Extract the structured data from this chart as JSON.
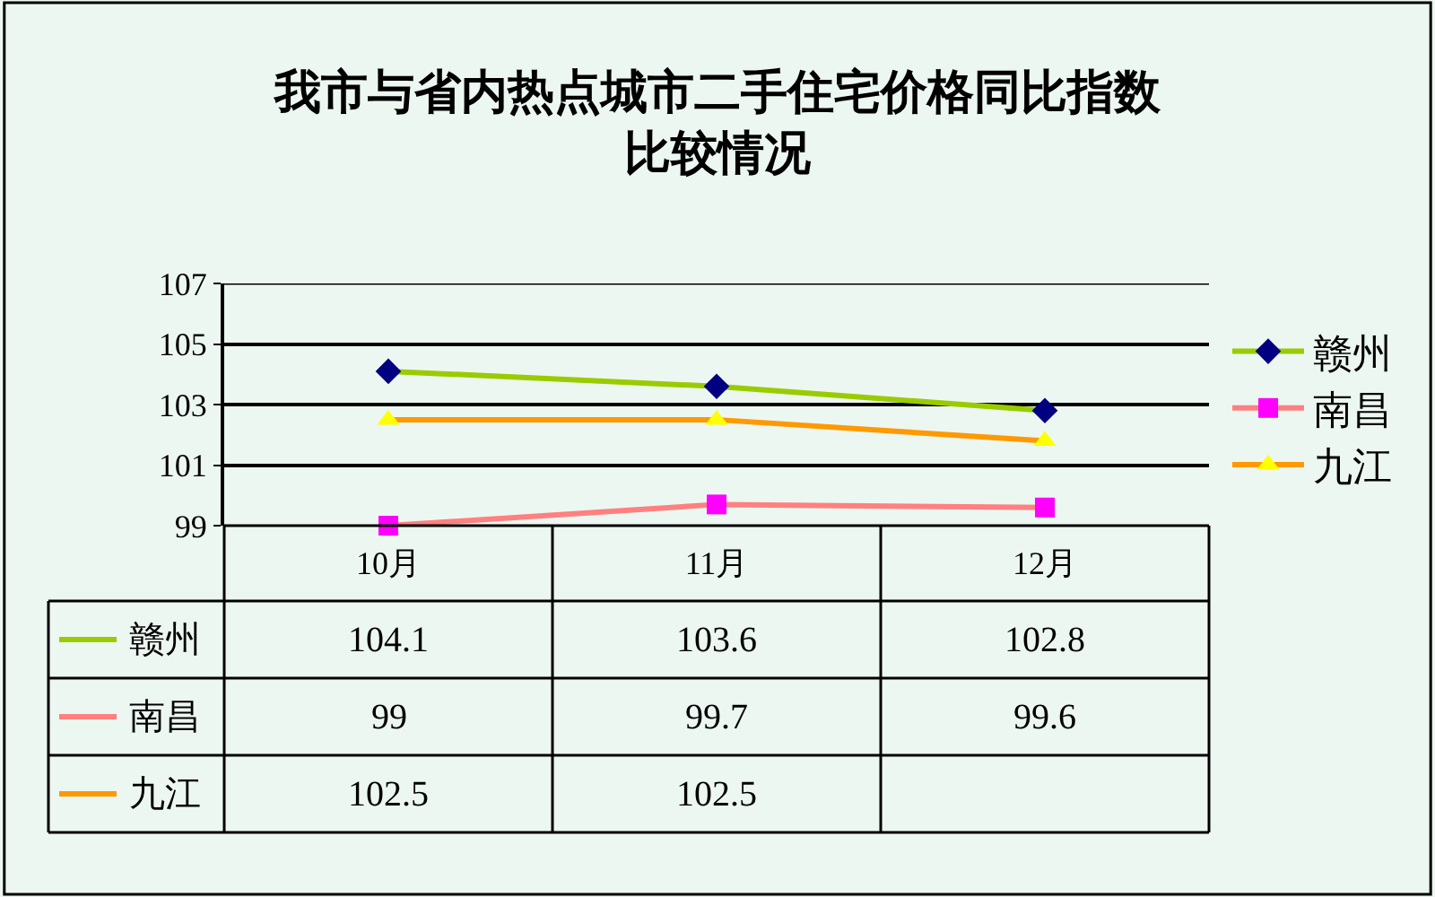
{
  "chart_data": {
    "type": "line",
    "title": "我市与省内热点城市二手住宅价格同比指数比较情况",
    "categories": [
      "10月",
      "11月",
      "12月"
    ],
    "series": [
      {
        "name": "赣州",
        "color": "#99cc00",
        "colors": [
          "#000080",
          "#000080",
          "#000080"
        ],
        "marker": "diamond",
        "values": [
          104.1,
          103.6,
          102.8
        ],
        "value_labels": [
          "104.1",
          "103.6",
          "102.8"
        ]
      },
      {
        "name": "南昌",
        "color": "#ff8080",
        "colors": [
          "#ff00ff",
          "#ff00ff",
          "#ff00ff"
        ],
        "marker": "square",
        "values": [
          99,
          99.7,
          99.6
        ],
        "value_labels": [
          "99",
          "99.7",
          "99.6"
        ]
      },
      {
        "name": "九江",
        "color": "#ff9900",
        "colors": [
          "#ffff00",
          "#ffff00",
          "#ffff00"
        ],
        "marker": "triangle",
        "values": [
          102.5,
          102.5,
          101.8
        ],
        "value_labels": [
          "102.5",
          "102.5",
          null
        ]
      }
    ],
    "ylim": [
      99,
      107
    ],
    "yticks": [
      99,
      101,
      103,
      105,
      107
    ],
    "grid": "y",
    "legend": "right",
    "line_style": "solid"
  }
}
